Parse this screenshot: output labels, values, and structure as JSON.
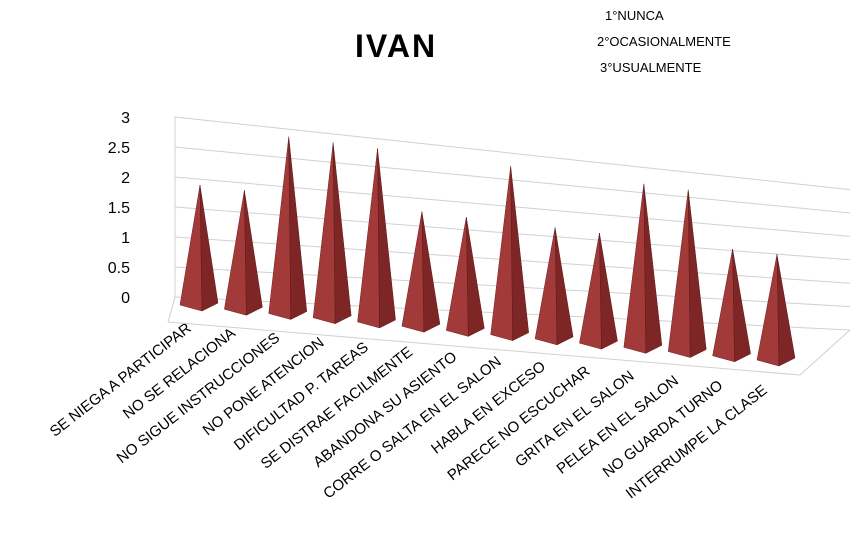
{
  "chart_data": {
    "type": "bar",
    "title": "IVAN",
    "subtitle_lines": [
      "1°NUNCA",
      "2°OCASIONALMENTE",
      "3°USUALMENTE"
    ],
    "categories": [
      "SE NIEGA A PARTICIPAR",
      "NO SE RELACIONA",
      "NO SIGUE INSTRUCCIONES",
      "NO PONE ATENCION",
      "DIFICULTAD P. TAREAS",
      "SE DISTRAE FACILMENTE",
      "ABANDONA SU ASIENTO",
      "CORRE O SALTA EN EL SALON",
      "HABLA EN EXCESO",
      "PARECE NO ESCUCHAR",
      "GRITA EN EL SALON",
      "PELEA EN EL SALON",
      "NO GUARDA TURNO",
      "INTERRUMPE LA CLASE"
    ],
    "series": [
      {
        "values": [
          2,
          2,
          3,
          3,
          3,
          2,
          2,
          3,
          2,
          2,
          3,
          3,
          2,
          2
        ]
      }
    ],
    "ylim": [
      0,
      3
    ],
    "yticks": [
      "0",
      "0.5",
      "1",
      "1.5",
      "2",
      "2.5",
      "3"
    ],
    "bar_shape": "pyramid",
    "perspective": "3d",
    "grid": true,
    "colors": {
      "bar_front": "#a33a3a",
      "bar_side": "#7e2525",
      "bar_base": "#8e2e2e",
      "grid": "#d0d0d0"
    }
  }
}
